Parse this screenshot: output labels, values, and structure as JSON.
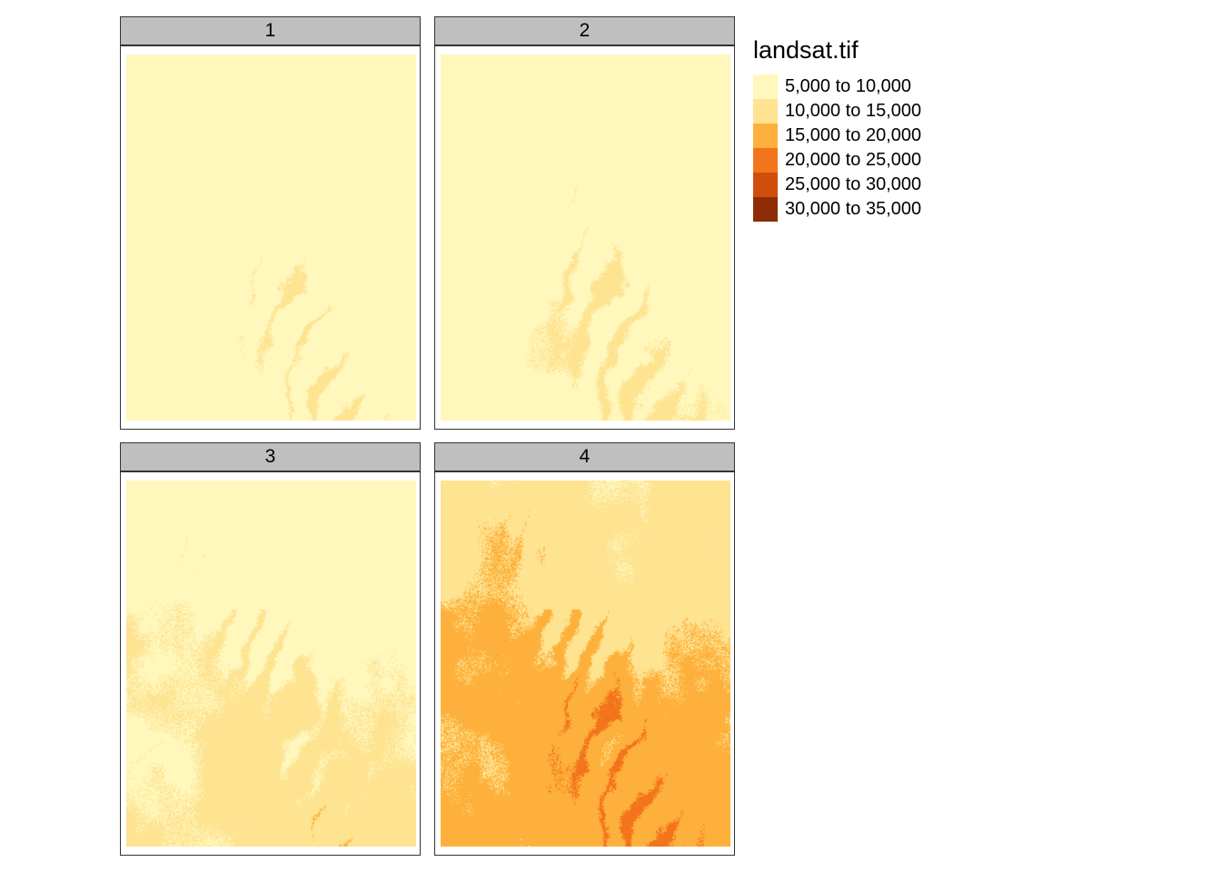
{
  "legend": {
    "title": "landsat.tif",
    "items": [
      {
        "label": "5,000 to 10,000",
        "color": "#fff7bc"
      },
      {
        "label": "10,000 to 15,000",
        "color": "#fee391"
      },
      {
        "label": "15,000 to 20,000",
        "color": "#fdb13c"
      },
      {
        "label": "20,000 to 25,000",
        "color": "#f3741b"
      },
      {
        "label": "25,000 to 30,000",
        "color": "#d14d0b"
      },
      {
        "label": "30,000 to 35,000",
        "color": "#8e2c06"
      }
    ]
  },
  "facets": [
    {
      "label": "1",
      "band_level": 0.12
    },
    {
      "label": "2",
      "band_level": 0.16
    },
    {
      "label": "3",
      "band_level": 0.26
    },
    {
      "label": "4",
      "band_level": 0.62
    }
  ]
}
